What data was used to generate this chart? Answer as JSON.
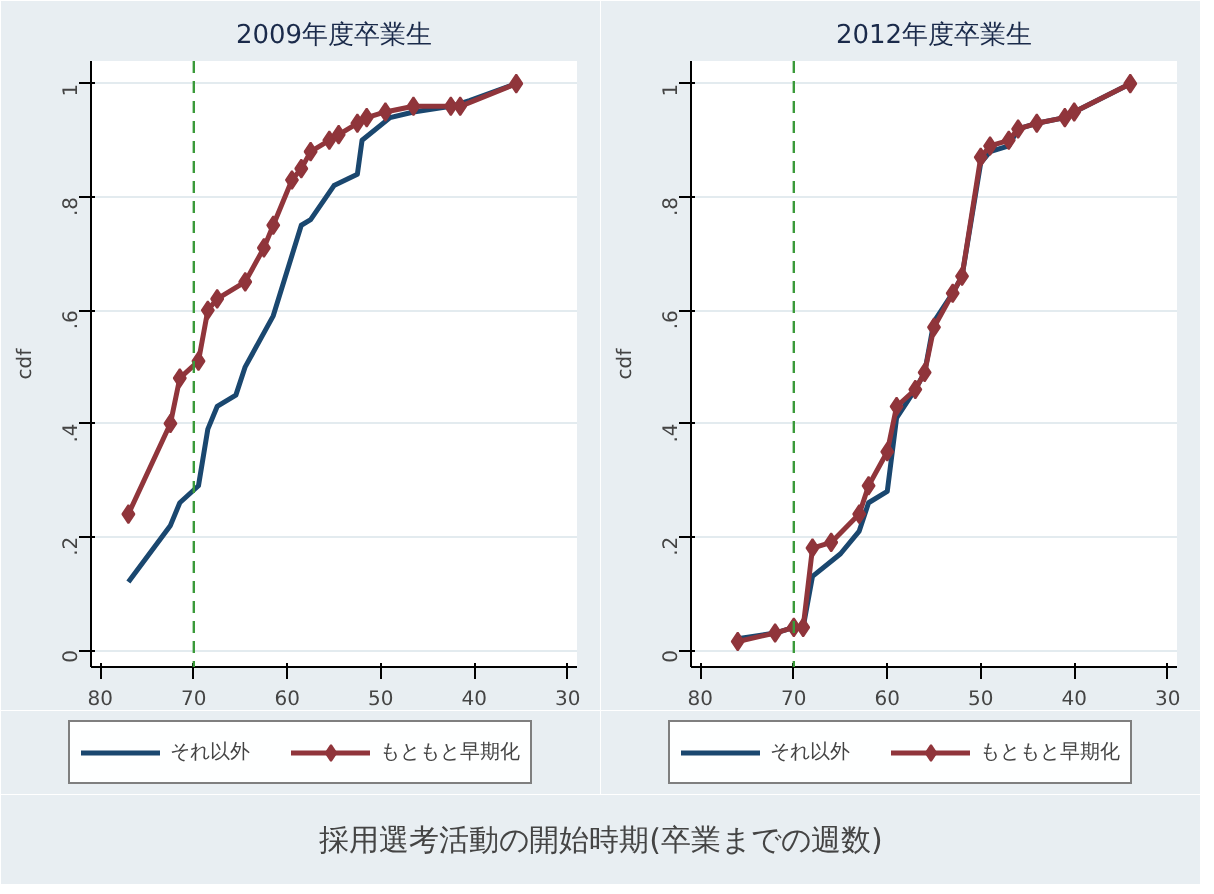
{
  "chart_data": [
    {
      "type": "line",
      "title": "2009年度卒業生",
      "ylabel": "cdf",
      "xlim": [
        81,
        29
      ],
      "ylim": [
        -0.03,
        1.04
      ],
      "xticks": [
        80,
        70,
        60,
        50,
        40,
        30
      ],
      "yticks": [
        0,
        {
          "value": 0.2,
          "label": ".2"
        },
        {
          "value": 0.4,
          "label": ".4"
        },
        {
          "value": 0.6,
          "label": ".6"
        },
        {
          "value": 0.8,
          "label": ".8"
        },
        1
      ],
      "grid": "y",
      "legend": "bottom",
      "ref_lines": [
        {
          "axis": "x",
          "value": 70,
          "color": "#3a9a3a",
          "line_style": "dashed"
        }
      ],
      "annotations": [
        "採用選考活動の開始時期(卒業までの週数)"
      ],
      "series": [
        {
          "name": "それ以外",
          "color": "#1a476f",
          "marker": "none",
          "x": [
            77,
            72.5,
            71.5,
            69.5,
            68.5,
            67.5,
            65.5,
            64.5,
            61.5,
            58.5,
            57.5,
            55,
            52.5,
            52,
            49,
            46.5,
            42.5,
            40.5,
            35.5
          ],
          "values": [
            0.12,
            0.22,
            0.26,
            0.29,
            0.39,
            0.43,
            0.45,
            0.5,
            0.59,
            0.75,
            0.76,
            0.82,
            0.84,
            0.9,
            0.94,
            0.95,
            0.96,
            0.97,
            1
          ]
        },
        {
          "name": "もともと早期化",
          "color": "#90353b",
          "marker": "diamond",
          "x": [
            77,
            72.5,
            71.5,
            69.5,
            68.5,
            67.5,
            64.5,
            62.5,
            61.5,
            59.5,
            58.5,
            57.5,
            55.5,
            54.5,
            52.5,
            51.5,
            49.5,
            46.5,
            42.5,
            41.5,
            35.5
          ],
          "values": [
            0.24,
            0.4,
            0.48,
            0.51,
            0.6,
            0.62,
            0.65,
            0.71,
            0.75,
            0.83,
            0.85,
            0.88,
            0.9,
            0.91,
            0.93,
            0.94,
            0.95,
            0.96,
            0.96,
            0.96,
            1
          ]
        }
      ]
    },
    {
      "type": "line",
      "title": "2012年度卒業生",
      "ylabel": "cdf",
      "xlim": [
        81,
        29
      ],
      "ylim": [
        -0.03,
        1.04
      ],
      "xticks": [
        80,
        70,
        60,
        50,
        40,
        30
      ],
      "yticks": [
        0,
        {
          "value": 0.2,
          "label": ".2"
        },
        {
          "value": 0.4,
          "label": ".4"
        },
        {
          "value": 0.6,
          "label": ".6"
        },
        {
          "value": 0.8,
          "label": ".8"
        },
        1
      ],
      "grid": "y",
      "legend": "bottom",
      "ref_lines": [
        {
          "axis": "x",
          "value": 70,
          "color": "#3a9a3a",
          "line_style": "dashed"
        }
      ],
      "series": [
        {
          "name": "それ以外",
          "color": "#1a476f",
          "marker": "none",
          "x": [
            76,
            72,
            70,
            69,
            68,
            65,
            63,
            62,
            60,
            59,
            57,
            56,
            55,
            53,
            52,
            50,
            49,
            47,
            46,
            44,
            41,
            40,
            34
          ],
          "values": [
            0.02,
            0.03,
            0.04,
            0.04,
            0.13,
            0.17,
            0.21,
            0.26,
            0.28,
            0.41,
            0.46,
            0.49,
            0.58,
            0.63,
            0.66,
            0.86,
            0.88,
            0.89,
            0.92,
            0.93,
            0.94,
            0.95,
            1
          ]
        },
        {
          "name": "もともと早期化",
          "color": "#90353b",
          "marker": "diamond",
          "x": [
            76,
            72,
            70,
            69,
            68,
            66,
            63,
            62,
            60,
            59,
            57,
            56,
            55,
            53,
            52,
            50,
            49,
            47,
            46,
            44,
            41,
            40,
            34
          ],
          "values": [
            0.015,
            0.03,
            0.04,
            0.04,
            0.18,
            0.19,
            0.24,
            0.29,
            0.35,
            0.43,
            0.46,
            0.49,
            0.57,
            0.63,
            0.66,
            0.87,
            0.89,
            0.9,
            0.92,
            0.93,
            0.94,
            0.95,
            1
          ]
        }
      ]
    }
  ]
}
